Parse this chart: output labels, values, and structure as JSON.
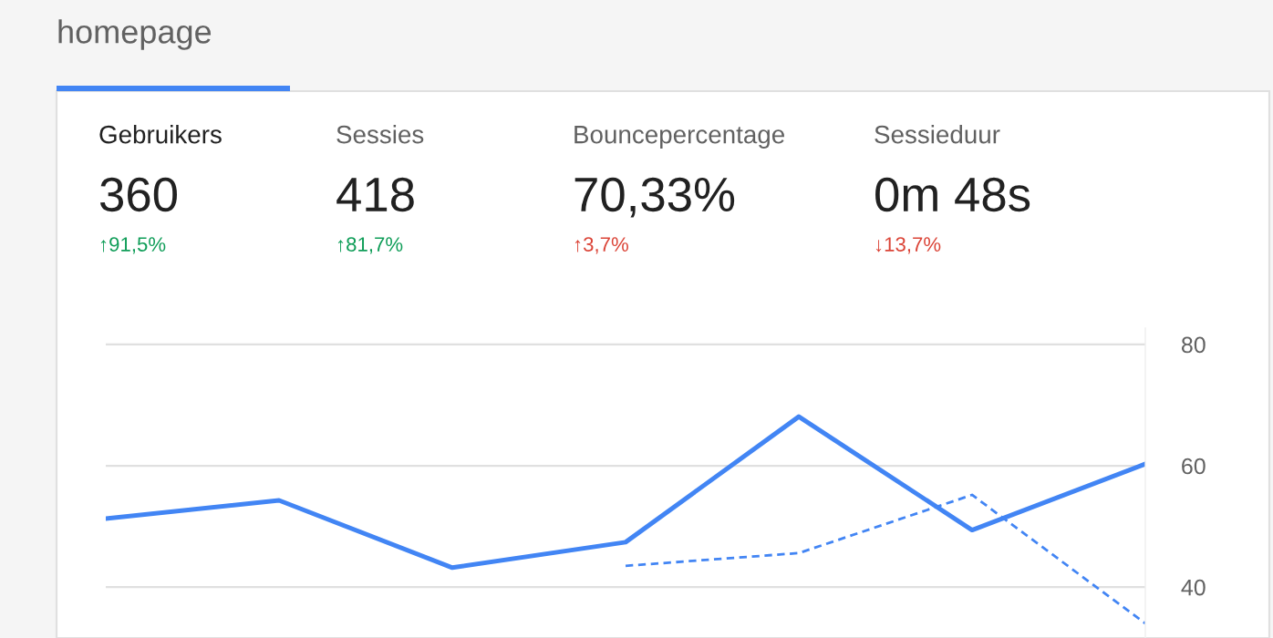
{
  "chart_data": [
    {
      "type": "other",
      "title": "homepage",
      "annotations": [
        "Gebruikers",
        "360",
        "↑91,5%",
        "Sessies",
        "418",
        "↑81,7%",
        "Bouncepercentage",
        "70,33%",
        "↑3,7%",
        "Sessieduur",
        "0m 48s",
        "↓13,7%"
      ],
      "colors": [
        "#212121",
        "#212121",
        "#0f9d58",
        "#616161",
        "#212121",
        "#0f9d58",
        "#616161",
        "#212121",
        "#db4437",
        "#616161",
        "#212121",
        "#db4437"
      ]
    },
    {
      "type": "line",
      "categories": [
        null,
        null,
        null,
        null,
        null,
        null,
        null
      ],
      "series": [
        {
          "color": "#4285f4",
          "line_style": "solid",
          "values": [
            51.3,
            54.3,
            43.2,
            47.4,
            68.1,
            49.4,
            60.3
          ]
        },
        {
          "color": "#4285f4",
          "line_style": "dashed",
          "values": [
            null,
            null,
            null,
            43.5,
            45.6,
            55.2,
            34.0
          ]
        }
      ],
      "ylim": [
        31.6,
        82.7
      ],
      "yticks": [
        40,
        60,
        80
      ],
      "grid": "y",
      "marker": "none"
    }
  ]
}
